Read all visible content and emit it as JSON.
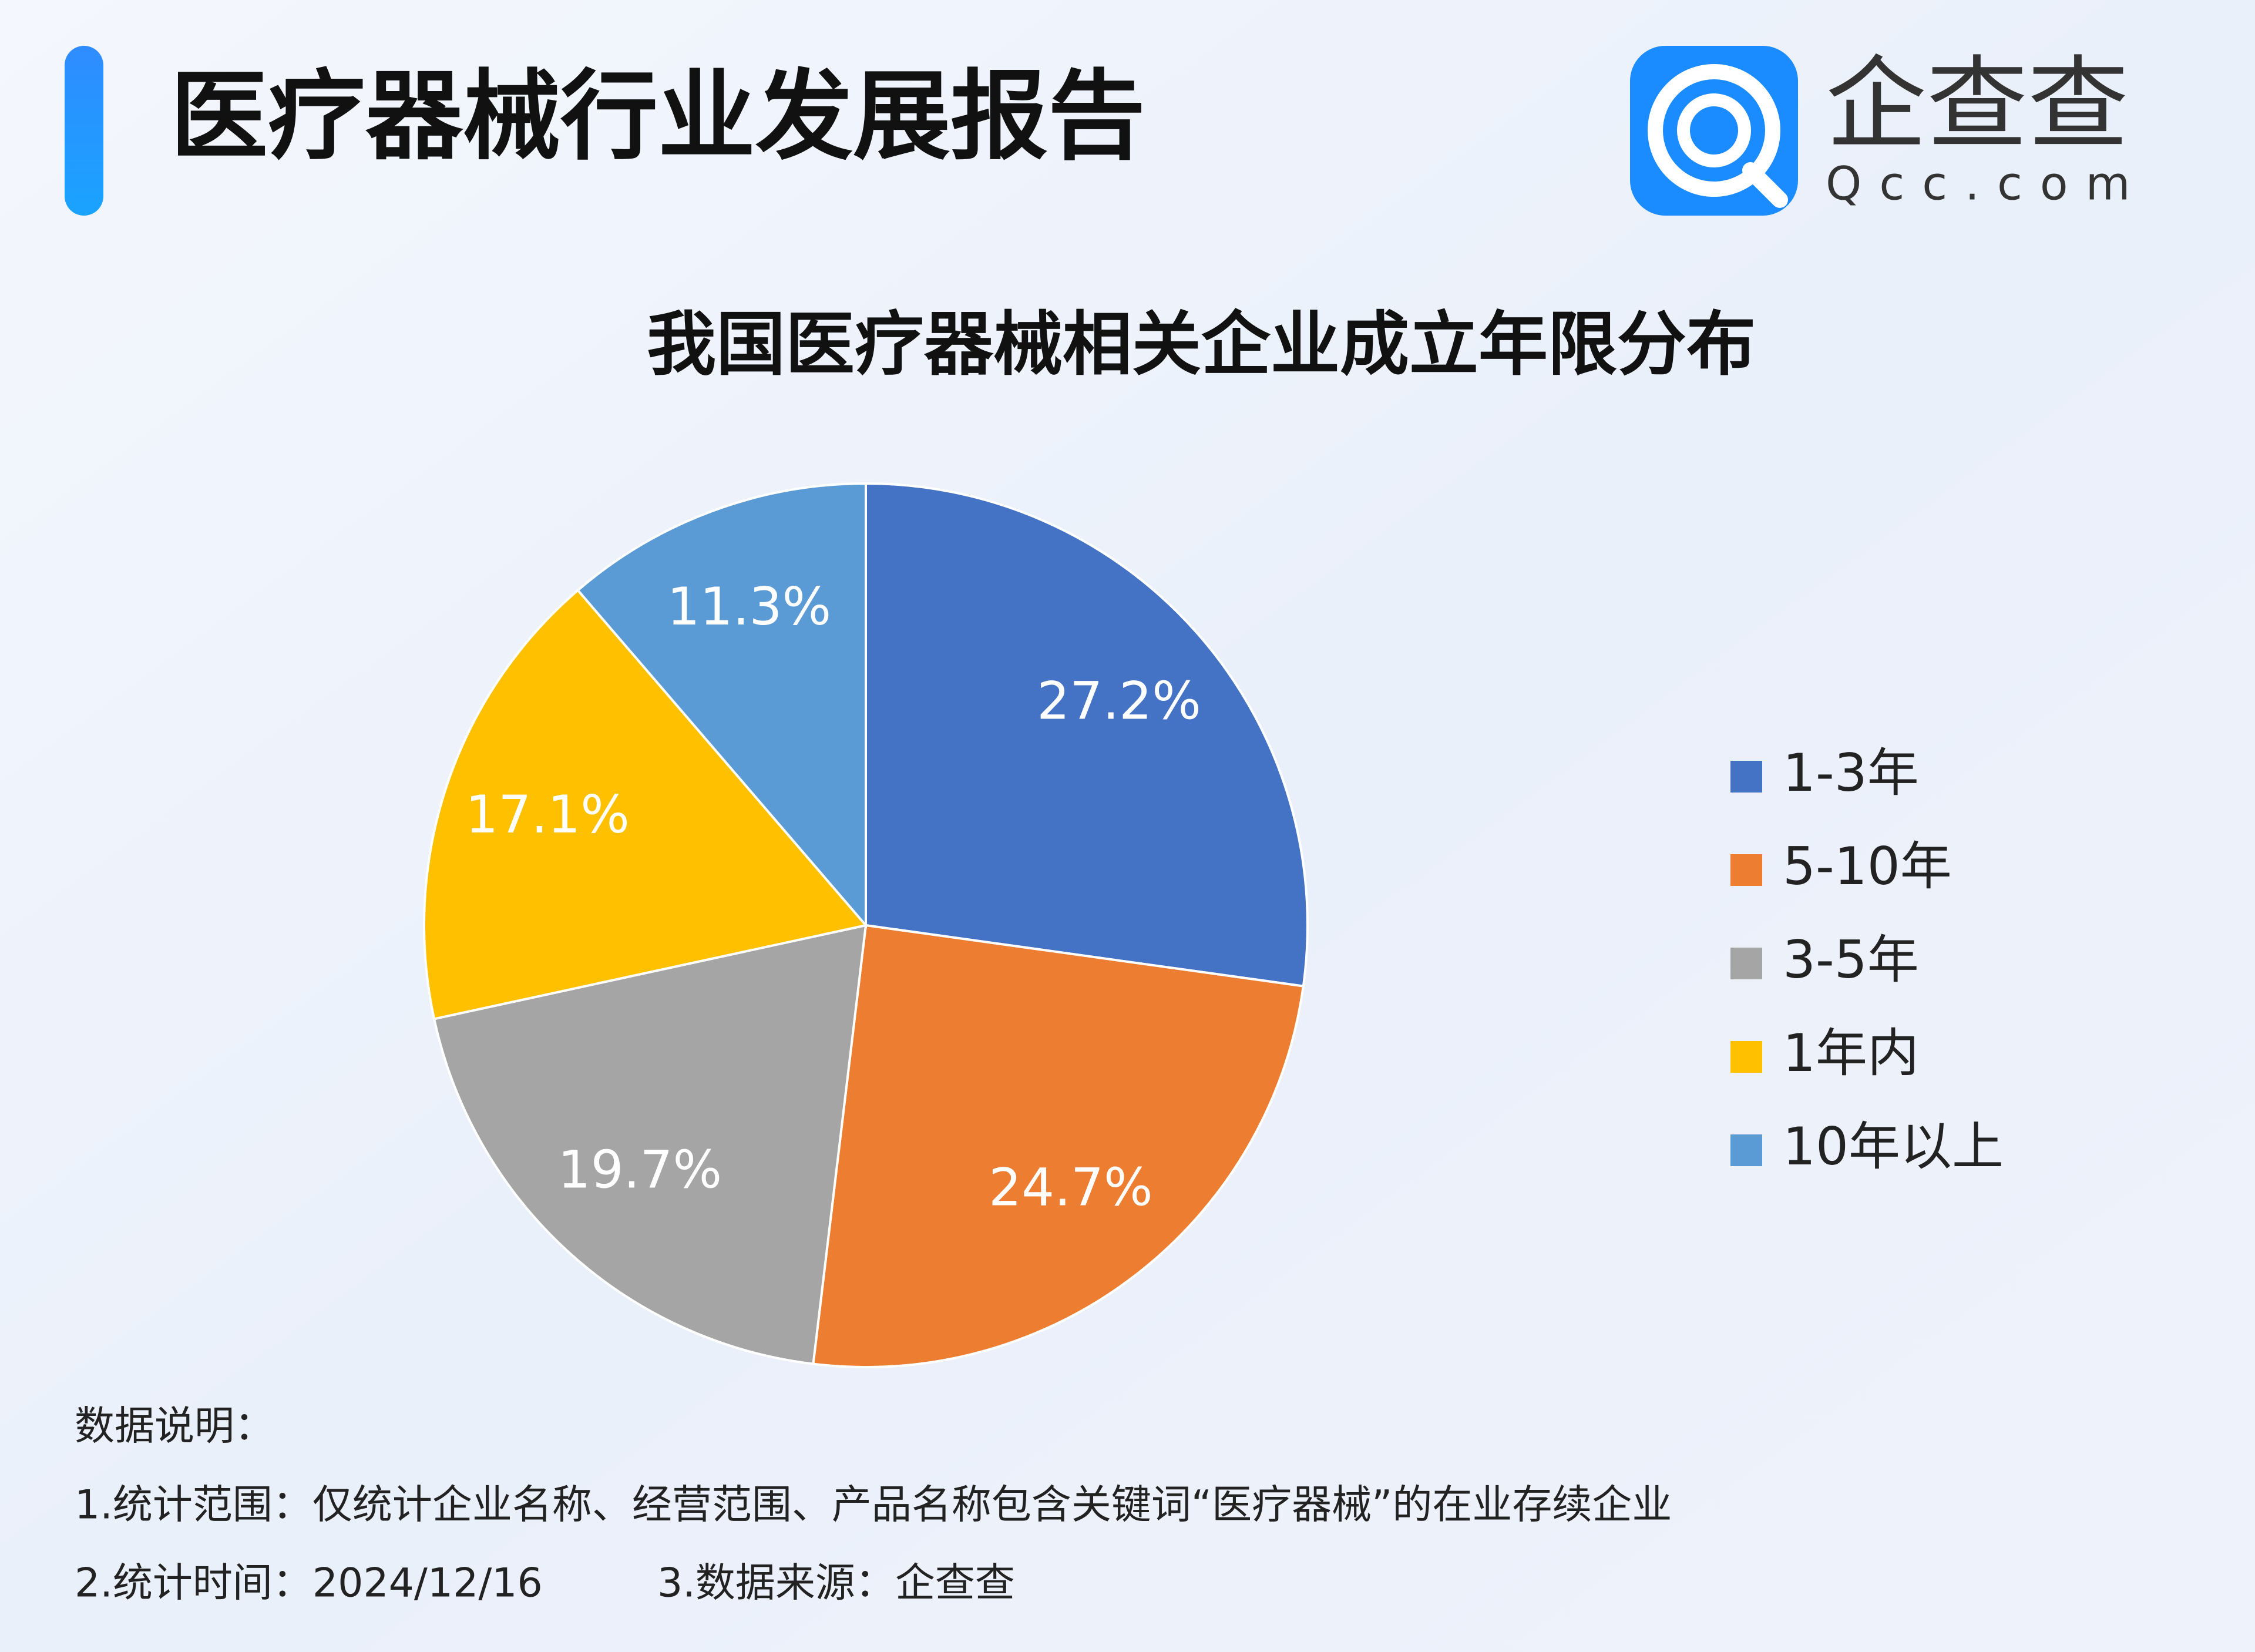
{
  "header": {
    "title": "医疗器械行业发展报告"
  },
  "logo": {
    "name": "企查查",
    "domain": "Qcc.com"
  },
  "chart_data": {
    "type": "pie",
    "title": "我国医疗器械相关企业成立年限分布",
    "categories": [
      "1-3年",
      "5-10年",
      "3-5年",
      "1年内",
      "10年以上"
    ],
    "values": [
      27.2,
      24.7,
      19.7,
      17.1,
      11.3
    ],
    "value_labels": [
      "27.2%",
      "24.7%",
      "19.7%",
      "17.1%",
      "11.3%"
    ],
    "colors": [
      "#4472c4",
      "#ed7d31",
      "#a5a5a5",
      "#ffc000",
      "#5b9bd5"
    ],
    "legend": "right"
  },
  "notes": {
    "heading": "数据说明：",
    "items": [
      "1.统计范围：仅统计企业名称、经营范围、产品名称包含关键词“医疗器械”的在业存续企业",
      "2.统计时间：2024/12/16",
      "3.数据来源：企查查"
    ]
  }
}
